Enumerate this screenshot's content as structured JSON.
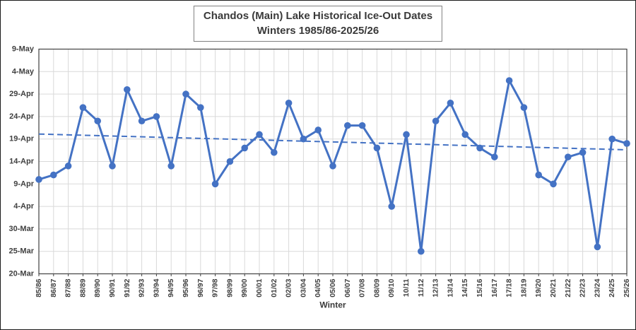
{
  "window": {
    "background": "#ffffff",
    "border_color": "#1a1a1a"
  },
  "chart_data": {
    "type": "line",
    "title": "Chandos (Main) Lake Historical Ice-Out Dates",
    "subtitle": "Winters 1985/86-2025/26",
    "xlabel": "Winter",
    "ylabel": "",
    "legend": "none",
    "grid": "both",
    "categories": [
      "85/86",
      "86/87",
      "87/88",
      "88/89",
      "89/90",
      "90/91",
      "91/92",
      "92/93",
      "93/94",
      "94/95",
      "95/96",
      "96/97",
      "97/98",
      "98/99",
      "99/00",
      "00/01",
      "01/02",
      "02/03",
      "03/04",
      "04/05",
      "05/06",
      "06/07",
      "07/08",
      "08/09",
      "09/10",
      "10/11",
      "11/12",
      "12/13",
      "13/14",
      "14/15",
      "15/16",
      "16/17",
      "17/18",
      "18/19",
      "19/20",
      "20/21",
      "21/22",
      "22/23",
      "23/24",
      "24/25",
      "25/26"
    ],
    "series": [
      {
        "name": "Ice-Out Date",
        "dates": [
          "10-Apr",
          "11-Apr",
          "13-Apr",
          "26-Apr",
          "23-Apr",
          "13-Apr",
          "30-Apr",
          "23-Apr",
          "24-Apr",
          "13-Apr",
          "29-Apr",
          "26-Apr",
          "9-Apr",
          "14-Apr",
          "17-Apr",
          "20-Apr",
          "16-Apr",
          "27-Apr",
          "19-Apr",
          "21-Apr",
          "13-Apr",
          "22-Apr",
          "22-Apr",
          "17-Apr",
          "4-Apr",
          "20-Apr",
          "25-Mar",
          "23-Apr",
          "27-Apr",
          "20-Apr",
          "17-Apr",
          "15-Apr",
          "2-May",
          "26-Apr",
          "11-Apr",
          "9-Apr",
          "15-Apr",
          "16-Apr",
          "26-Mar",
          "19-Apr",
          "18-Apr"
        ],
        "days_after_mar20": [
          21,
          22,
          24,
          37,
          34,
          24,
          41,
          34,
          35,
          24,
          40,
          37,
          20,
          25,
          28,
          31,
          27,
          38,
          30,
          32,
          24,
          33,
          33,
          28,
          15,
          31,
          5,
          34,
          38,
          31,
          28,
          26,
          43,
          37,
          22,
          20,
          26,
          27,
          6,
          30,
          29
        ]
      }
    ],
    "trendline": {
      "style": "dashed",
      "start_day": 31.1,
      "end_day": 27.6
    },
    "y_ticks": [
      {
        "label": "9-May",
        "day": 50
      },
      {
        "label": "4-May",
        "day": 45
      },
      {
        "label": "29-Apr",
        "day": 40
      },
      {
        "label": "24-Apr",
        "day": 35
      },
      {
        "label": "19-Apr",
        "day": 30
      },
      {
        "label": "14-Apr",
        "day": 25
      },
      {
        "label": "9-Apr",
        "day": 20
      },
      {
        "label": "4-Apr",
        "day": 15
      },
      {
        "label": "30-Mar",
        "day": 10
      },
      {
        "label": "25-Mar",
        "day": 5
      },
      {
        "label": "20-Mar",
        "day": 0
      }
    ],
    "ylim": [
      0,
      50
    ],
    "colors": {
      "series": "#4472C4",
      "gridline": "#D9D9D9",
      "plot_border": "#404040",
      "tick_text": "#3f3f3f",
      "axis_label_text": "#3a3a3a"
    }
  }
}
